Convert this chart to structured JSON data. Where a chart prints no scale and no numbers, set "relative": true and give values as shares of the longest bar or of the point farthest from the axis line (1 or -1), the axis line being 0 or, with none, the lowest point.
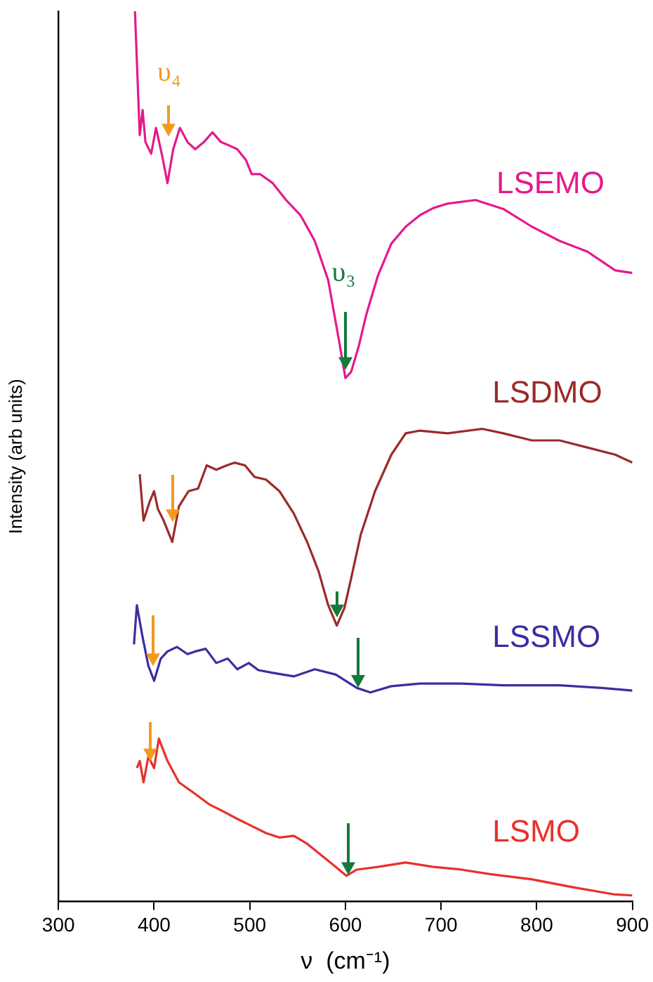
{
  "chart_data": {
    "type": "line",
    "relative": true,
    "xlabel": "ν  (cm⁻¹)",
    "ylabel": "Intensity (arb units)",
    "xlim": [
      300,
      900
    ],
    "xticks": [
      300,
      400,
      500,
      600,
      700,
      800,
      900
    ],
    "legend": false,
    "marker": "none",
    "line_style": "solid",
    "annotations": [
      "υ₄",
      "υ₃"
    ],
    "series": [
      {
        "name": "LSEMO",
        "color": "#e5198c",
        "x": [
          380,
          385,
          388,
          391,
          397,
          402,
          408,
          414,
          420,
          427,
          435,
          443,
          452,
          461,
          470,
          477,
          487,
          496,
          502,
          511,
          524,
          538,
          553,
          568,
          582,
          593,
          600,
          606,
          614,
          622,
          634,
          648,
          663,
          678,
          692,
          707,
          736,
          765,
          795,
          824,
          853,
          882,
          900
        ],
        "values": [
          1.0,
          0.861,
          0.889,
          0.853,
          0.84,
          0.869,
          0.84,
          0.807,
          0.845,
          0.869,
          0.853,
          0.845,
          0.853,
          0.864,
          0.853,
          0.85,
          0.845,
          0.833,
          0.817,
          0.817,
          0.807,
          0.788,
          0.771,
          0.742,
          0.698,
          0.632,
          0.588,
          0.595,
          0.624,
          0.66,
          0.703,
          0.739,
          0.758,
          0.771,
          0.779,
          0.784,
          0.788,
          0.778,
          0.758,
          0.742,
          0.73,
          0.709,
          0.706
        ]
      },
      {
        "name": "LSDMO",
        "color": "#9b2a2a",
        "x": [
          385,
          389,
          395,
          400,
          404,
          410,
          419,
          426,
          436,
          446,
          455,
          465,
          476,
          484,
          495,
          505,
          517,
          531,
          546,
          560,
          572,
          582,
          591,
          599,
          606,
          616,
          631,
          648,
          663,
          678,
          707,
          743,
          765,
          795,
          824,
          853,
          882,
          900
        ],
        "values": [
          0.48,
          0.428,
          0.448,
          0.461,
          0.441,
          0.428,
          0.404,
          0.444,
          0.461,
          0.464,
          0.49,
          0.485,
          0.49,
          0.493,
          0.49,
          0.477,
          0.474,
          0.461,
          0.436,
          0.404,
          0.371,
          0.333,
          0.31,
          0.33,
          0.363,
          0.412,
          0.461,
          0.502,
          0.526,
          0.529,
          0.526,
          0.531,
          0.526,
          0.518,
          0.518,
          0.51,
          0.502,
          0.493
        ]
      },
      {
        "name": "LSSMO",
        "color": "#3a2ea0",
        "x": [
          379,
          382,
          388,
          394,
          400,
          407,
          414,
          424,
          435,
          443,
          454,
          465,
          477,
          487,
          499,
          509,
          524,
          546,
          568,
          590,
          612,
          626,
          648,
          678,
          721,
          765,
          824,
          868,
          900
        ],
        "values": [
          0.289,
          0.333,
          0.297,
          0.265,
          0.248,
          0.273,
          0.281,
          0.286,
          0.278,
          0.281,
          0.284,
          0.268,
          0.273,
          0.261,
          0.268,
          0.26,
          0.257,
          0.253,
          0.261,
          0.255,
          0.24,
          0.235,
          0.242,
          0.245,
          0.245,
          0.243,
          0.243,
          0.24,
          0.237
        ]
      },
      {
        "name": "LSMO",
        "color": "#e8302a",
        "x": [
          382,
          385,
          389,
          394,
          400,
          405,
          414,
          426,
          443,
          458,
          473,
          487,
          502,
          517,
          531,
          546,
          560,
          575,
          590,
          601,
          612,
          634,
          663,
          692,
          721,
          751,
          795,
          839,
          882,
          900
        ],
        "values": [
          0.15,
          0.158,
          0.134,
          0.163,
          0.15,
          0.183,
          0.158,
          0.134,
          0.121,
          0.109,
          0.101,
          0.093,
          0.085,
          0.077,
          0.072,
          0.074,
          0.065,
          0.052,
          0.039,
          0.029,
          0.036,
          0.039,
          0.044,
          0.039,
          0.036,
          0.031,
          0.025,
          0.016,
          0.008,
          0.007
        ]
      }
    ]
  }
}
